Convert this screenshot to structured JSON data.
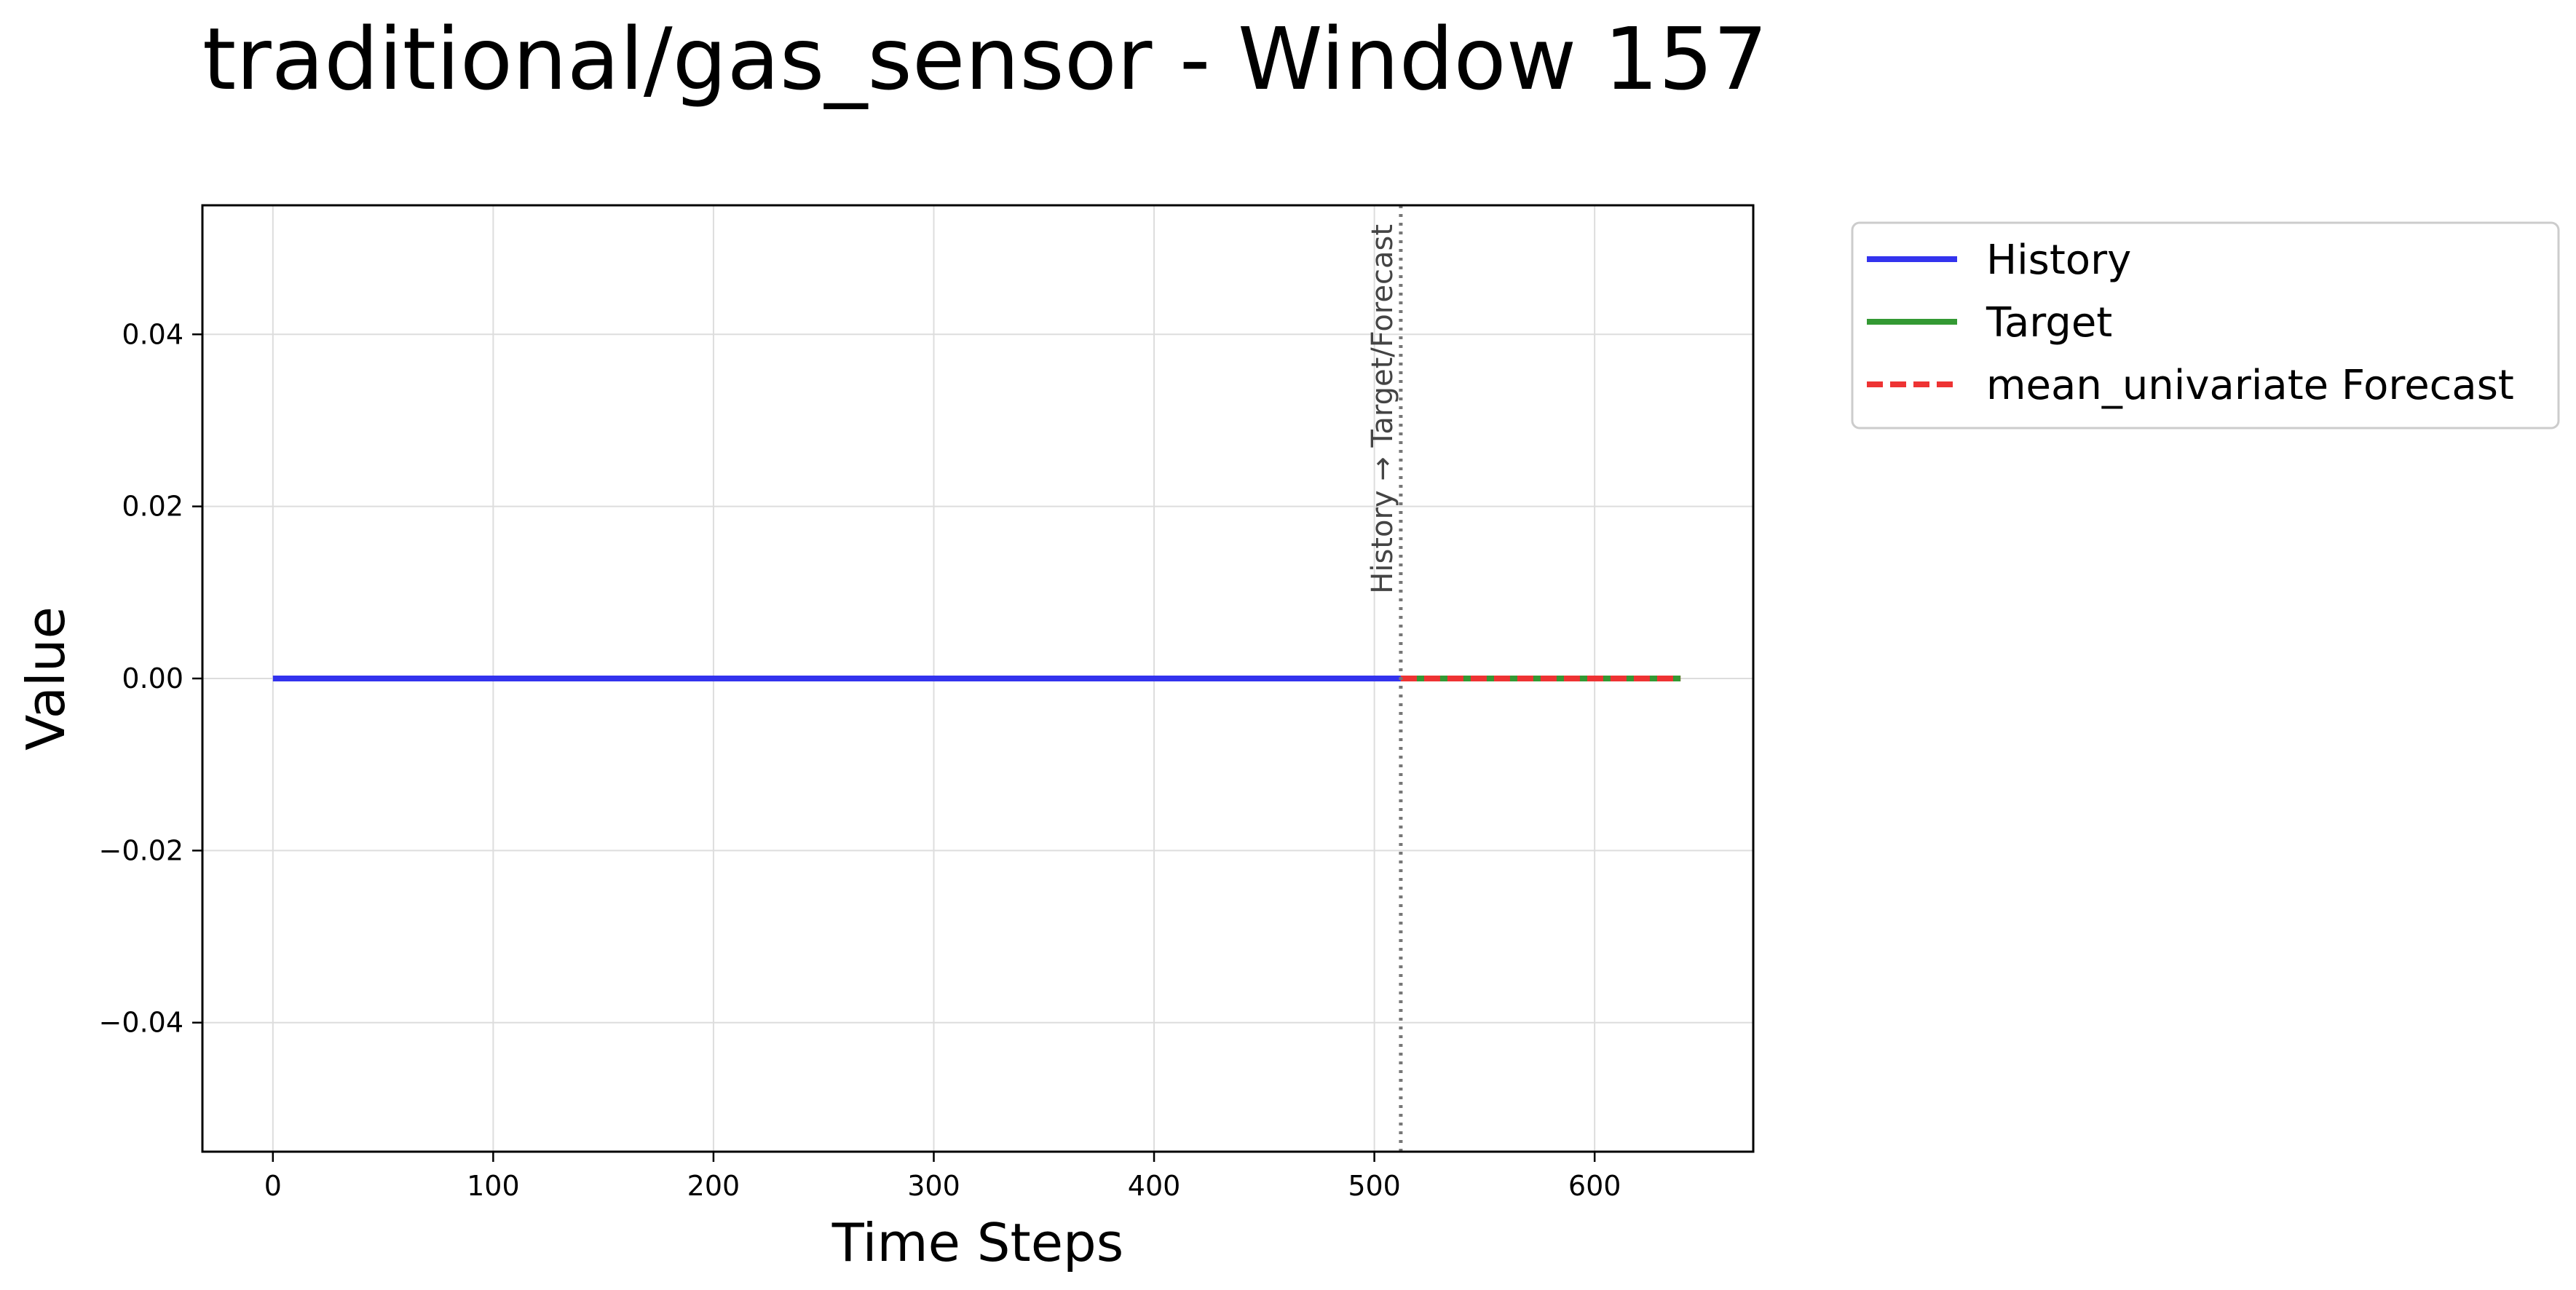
{
  "chart_data": {
    "type": "line",
    "title": "traditional/gas_sensor - Window 157",
    "xlabel": "Time Steps",
    "ylabel": "Value",
    "xlim": [
      -32,
      672
    ],
    "ylim": [
      -0.055,
      0.055
    ],
    "x_ticks": [
      0,
      100,
      200,
      300,
      400,
      500,
      600
    ],
    "y_ticks": [
      0.04,
      0.02,
      0.0,
      -0.02,
      -0.04
    ],
    "x_tick_labels": [
      "0",
      "100",
      "200",
      "300",
      "400",
      "500",
      "600"
    ],
    "y_tick_labels": [
      "0.04",
      "0.02",
      "0.00",
      "−0.02",
      "−0.04"
    ],
    "grid": true,
    "legend_position": "outside-top-right",
    "series": [
      {
        "name": "History",
        "color": "#3333ee",
        "style": "solid",
        "x": [
          0,
          512
        ],
        "y": [
          0.0,
          0.0
        ]
      },
      {
        "name": "Target",
        "color": "#339933",
        "style": "solid",
        "x": [
          512,
          639
        ],
        "y": [
          0.0,
          0.0
        ]
      },
      {
        "name": "mean_univariate Forecast",
        "color": "#ee3333",
        "style": "dashed",
        "x": [
          512,
          639
        ],
        "y": [
          0.0,
          0.0
        ]
      }
    ],
    "annotations": [
      {
        "type": "vline",
        "x": 512,
        "style": "dotted",
        "color": "#777777",
        "label": "History → Target/Forecast"
      }
    ]
  }
}
